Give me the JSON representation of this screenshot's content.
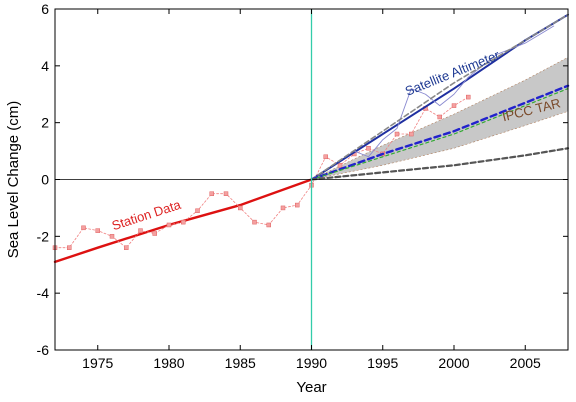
{
  "chart_data": {
    "type": "line",
    "xlabel": "Year",
    "ylabel": "Sea Level Change (cm)",
    "xlim": [
      1972,
      2008
    ],
    "ylim": [
      -6,
      6
    ],
    "xticks": [
      1975,
      1980,
      1985,
      1990,
      1995,
      2000,
      2005
    ],
    "yticks": [
      -6,
      -4,
      -2,
      0,
      2,
      4,
      6
    ],
    "grid": false,
    "reference_year": 1990,
    "annotations": [
      {
        "text": "Station Data",
        "x": 1978.5,
        "y": -1.4,
        "color": "#dd2222"
      },
      {
        "text": "Satellite Altimeter",
        "x": 2000,
        "y": 3.6,
        "color": "#1f3a93"
      },
      {
        "text": "IPCC TAR",
        "x": 2005.5,
        "y": 2.3,
        "color": "#7a4a2a"
      }
    ],
    "uncertainty_band": {
      "x": [
        1990,
        1995,
        2000,
        2005,
        2008
      ],
      "lower": [
        0,
        0.5,
        1.1,
        1.9,
        2.4
      ],
      "upper": [
        0,
        1.2,
        2.3,
        3.5,
        4.3
      ],
      "color": "#c8c8c8"
    },
    "series": [
      {
        "style": "station-fit",
        "color": "#dd1111",
        "x": [
          1972,
          1975,
          1980,
          1985,
          1990
        ],
        "y": [
          -2.9,
          -2.4,
          -1.6,
          -0.9,
          0.0
        ]
      },
      {
        "style": "station-observed",
        "color": "#f08080",
        "x": [
          1972,
          1973,
          1974,
          1975,
          1976,
          1977,
          1978,
          1979,
          1980,
          1981,
          1982,
          1983,
          1984,
          1985,
          1986,
          1987,
          1988,
          1989,
          1990,
          1991,
          1992,
          1993,
          1994,
          1995,
          1996,
          1997,
          1998,
          1999,
          2000,
          2001
        ],
        "y": [
          -2.4,
          -2.4,
          -1.7,
          -1.8,
          -2.0,
          -2.4,
          -1.8,
          -1.9,
          -1.6,
          -1.5,
          -1.1,
          -0.5,
          -0.5,
          -1.0,
          -1.5,
          -1.6,
          -1.0,
          -0.9,
          -0.2,
          0.8,
          0.5,
          0.9,
          1.1,
          0.9,
          1.6,
          1.6,
          2.5,
          2.2,
          2.6,
          2.9
        ]
      },
      {
        "style": "satellite-fit",
        "color": "#1f2fa0",
        "x": [
          1990,
          1995,
          2000,
          2005,
          2008
        ],
        "y": [
          0,
          1.6,
          3.2,
          4.9,
          5.8
        ]
      },
      {
        "style": "satellite-observed",
        "color": "#8a8ad0",
        "x": [
          1993,
          1994,
          1995,
          1996,
          1997,
          1998,
          1999,
          2000,
          2001,
          2002,
          2003,
          2004,
          2005,
          2006,
          2007
        ],
        "y": [
          1.0,
          0.8,
          1.4,
          1.8,
          3.2,
          3.0,
          2.6,
          3.0,
          3.6,
          4.0,
          4.4,
          4.6,
          4.8,
          5.1,
          5.4
        ]
      },
      {
        "style": "projection-upper",
        "color": "#888888",
        "x": [
          1990,
          2000,
          2008
        ],
        "y": [
          0,
          3.4,
          5.8
        ]
      },
      {
        "style": "projection-central",
        "color": "#2222cc",
        "x": [
          1990,
          1995,
          2000,
          2005,
          2008
        ],
        "y": [
          0,
          0.9,
          1.7,
          2.7,
          3.3
        ]
      },
      {
        "style": "projection-central-2",
        "color": "#33aa33",
        "x": [
          1990,
          1995,
          2000,
          2005,
          2008
        ],
        "y": [
          0,
          0.8,
          1.6,
          2.6,
          3.2
        ]
      },
      {
        "style": "projection-lower",
        "color": "#555555",
        "x": [
          1990,
          1995,
          2000,
          2005,
          2008
        ],
        "y": [
          0,
          0.25,
          0.5,
          0.85,
          1.1
        ]
      }
    ]
  }
}
